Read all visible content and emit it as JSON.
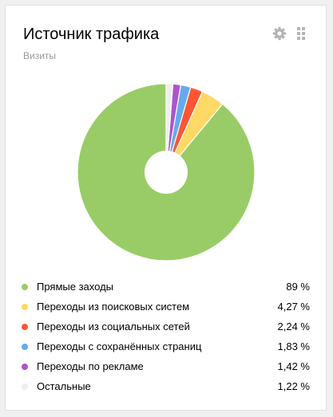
{
  "widget": {
    "title": "Источник трафика",
    "subtitle": "Визиты",
    "icons": [
      "gear-icon",
      "drag-handle-icon"
    ]
  },
  "chart_data": {
    "type": "pie",
    "donut": true,
    "categories": [
      "Прямые заходы",
      "Переходы из поисковых систем",
      "Переходы из социальных сетей",
      "Переходы с сохранённых страниц",
      "Переходы по рекламе",
      "Остальные"
    ],
    "values": [
      89,
      4.27,
      2.24,
      1.83,
      1.42,
      1.22
    ],
    "value_labels": [
      "89 %",
      "4,27 %",
      "2,24 %",
      "1,83 %",
      "1,42 %",
      "1,22 %"
    ],
    "colors": [
      "#99cc66",
      "#ffd966",
      "#ff5533",
      "#66aaee",
      "#aa55cc",
      "#eeeeee"
    ],
    "legend_position": "bottom"
  }
}
